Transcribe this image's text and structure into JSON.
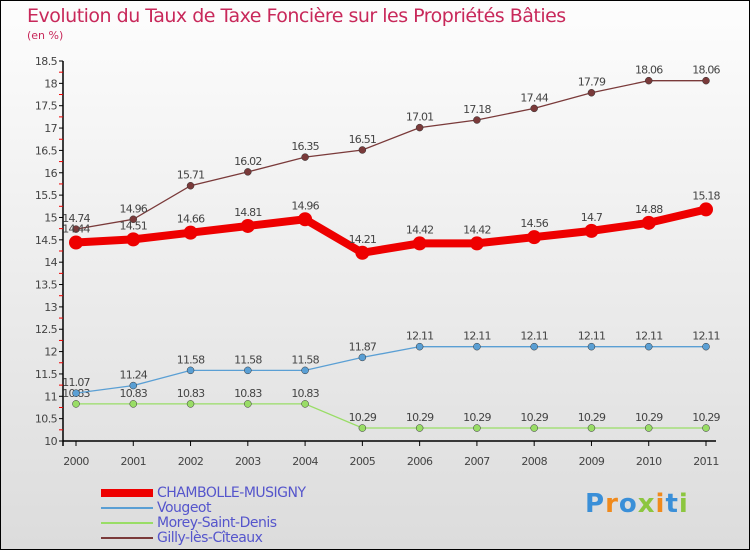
{
  "chart_data": {
    "type": "line",
    "title": "Evolution du Taux de Taxe Foncière sur les Propriétés Bâties",
    "subtitle": "(en %)",
    "x": [
      "2000",
      "2001",
      "2002",
      "2003",
      "2004",
      "2005",
      "2006",
      "2007",
      "2008",
      "2009",
      "2010",
      "2011"
    ],
    "ylim": [
      10,
      18.5
    ],
    "yticks": [
      "10",
      "10.5",
      "11",
      "11.5",
      "12",
      "12.5",
      "13",
      "13.5",
      "14",
      "14.5",
      "15",
      "15.5",
      "16",
      "16.5",
      "17",
      "17.5",
      "18",
      "18.5"
    ],
    "grid": false,
    "legend_position": "bottom-left",
    "series": [
      {
        "name": "CHAMBOLLE-MUSIGNY",
        "color": "#ee0000",
        "values": [
          14.44,
          14.51,
          14.66,
          14.81,
          14.96,
          14.21,
          14.42,
          14.42,
          14.56,
          14.7,
          14.88,
          15.18
        ]
      },
      {
        "name": "Vougeot",
        "color": "#5a9fd4",
        "values": [
          11.07,
          11.24,
          11.58,
          11.58,
          11.58,
          11.87,
          12.11,
          12.11,
          12.11,
          12.11,
          12.11,
          12.11
        ]
      },
      {
        "name": "Morey-Saint-Denis",
        "color": "#99dd66",
        "values": [
          10.83,
          10.83,
          10.83,
          10.83,
          10.83,
          10.29,
          10.29,
          10.29,
          10.29,
          10.29,
          10.29,
          10.29
        ]
      },
      {
        "name": "Gilly-lès-Cîteaux",
        "color": "#7a3a3a",
        "values": [
          14.74,
          14.96,
          15.71,
          16.02,
          16.35,
          16.51,
          17.01,
          17.18,
          17.44,
          17.79,
          18.06,
          18.06
        ]
      }
    ]
  },
  "logo": "Proxiti"
}
